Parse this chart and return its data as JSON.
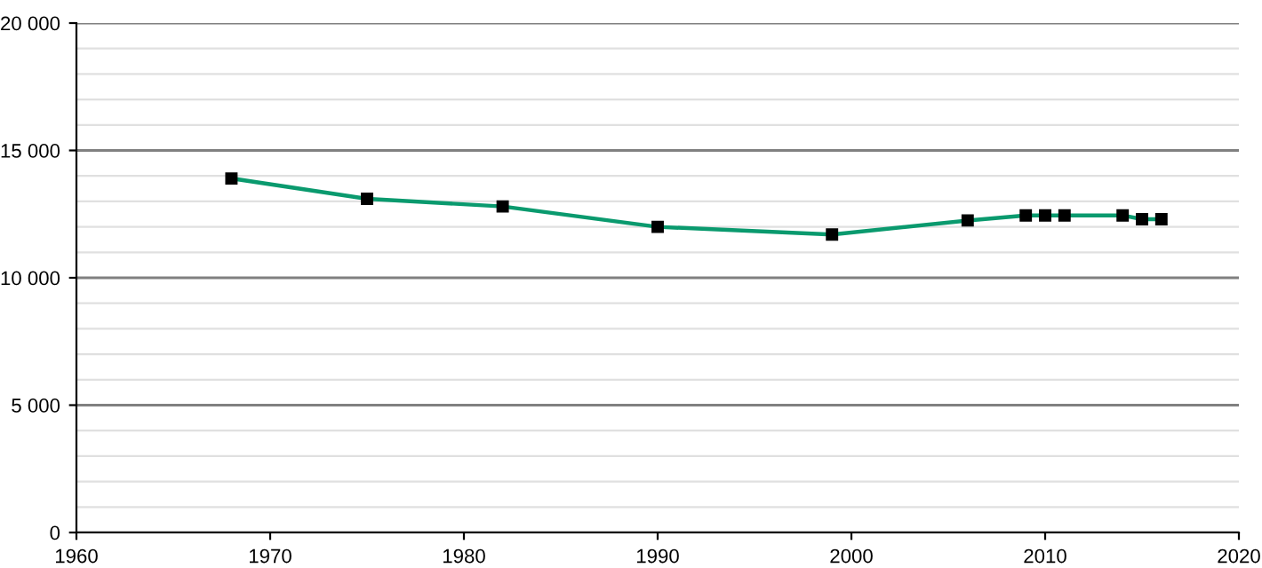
{
  "chart_data": {
    "type": "line",
    "x": [
      1968,
      1975,
      1982,
      1990,
      1999,
      2006,
      2009,
      2010,
      2011,
      2014,
      2015,
      2016
    ],
    "series": [
      {
        "color": "#0a9a6e",
        "values": [
          13900,
          13100,
          12800,
          12000,
          11700,
          12250,
          12450,
          12450,
          12450,
          12450,
          12300,
          12300
        ]
      }
    ],
    "xlim": [
      1960,
      2020
    ],
    "xticks": [
      1960,
      1970,
      1980,
      1990,
      2000,
      2010,
      2020
    ],
    "ylim": [
      0,
      20000
    ],
    "yticks": [
      {
        "value": 0,
        "label": "0"
      },
      {
        "value": 1000,
        "label": null
      },
      {
        "value": 2000,
        "label": null
      },
      {
        "value": 3000,
        "label": null
      },
      {
        "value": 4000,
        "label": null
      },
      {
        "value": 5000,
        "label": "5 000"
      },
      {
        "value": 6000,
        "label": null
      },
      {
        "value": 7000,
        "label": null
      },
      {
        "value": 8000,
        "label": null
      },
      {
        "value": 9000,
        "label": null
      },
      {
        "value": 10000,
        "label": "10 000"
      },
      {
        "value": 11000,
        "label": null
      },
      {
        "value": 12000,
        "label": null
      },
      {
        "value": 13000,
        "label": null
      },
      {
        "value": 14000,
        "label": null
      },
      {
        "value": 15000,
        "label": "15 000"
      },
      {
        "value": 16000,
        "label": null
      },
      {
        "value": 17000,
        "label": null
      },
      {
        "value": 18000,
        "label": null
      },
      {
        "value": 19000,
        "label": null
      },
      {
        "value": 20000,
        "label": "20 000"
      }
    ],
    "grid": "y",
    "marker": "square",
    "line_style": "solid"
  }
}
